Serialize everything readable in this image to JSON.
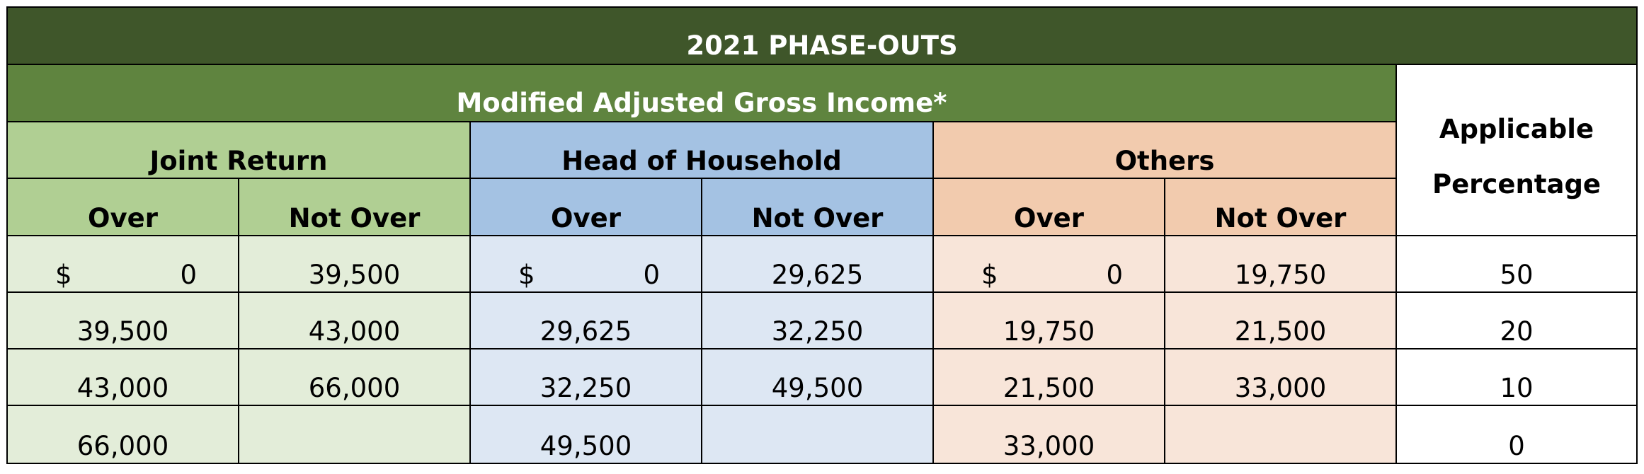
{
  "title": "2021 PHASE-OUTS",
  "magi_header": "Modified Adjusted Gross Income*",
  "applicable_header": {
    "line1": "Applicable",
    "line2": "Percentage"
  },
  "groups": {
    "joint": "Joint Return",
    "hoh": "Head of Household",
    "others": "Others"
  },
  "sub": {
    "over": "Over",
    "not_over": "Not Over"
  },
  "currency_symbol": "$",
  "rows": [
    {
      "joint_over": "0",
      "joint_not_over": "39,500",
      "hoh_over": "0",
      "hoh_not_over": "29,625",
      "others_over": "0",
      "others_not_over": "19,750",
      "pct": "50"
    },
    {
      "joint_over": "39,500",
      "joint_not_over": "43,000",
      "hoh_over": "29,625",
      "hoh_not_over": "32,250",
      "others_over": "19,750",
      "others_not_over": "21,500",
      "pct": "20"
    },
    {
      "joint_over": "43,000",
      "joint_not_over": "66,000",
      "hoh_over": "32,250",
      "hoh_not_over": "49,500",
      "others_over": "21,500",
      "others_not_over": "33,000",
      "pct": "10"
    },
    {
      "joint_over": "66,000",
      "joint_not_over": "",
      "hoh_over": "49,500",
      "hoh_not_over": "",
      "others_over": "33,000",
      "others_not_over": "",
      "pct": "0"
    }
  ],
  "colors": {
    "title_bg": "#3f562a",
    "magi_bg": "#5f843f",
    "joint_header": "#b0cf93",
    "joint_cell": "#e3edd9",
    "hoh_header": "#a4c2e3",
    "hoh_cell": "#dde7f3",
    "others_header": "#f2cbae",
    "others_cell": "#f8e5d9"
  }
}
